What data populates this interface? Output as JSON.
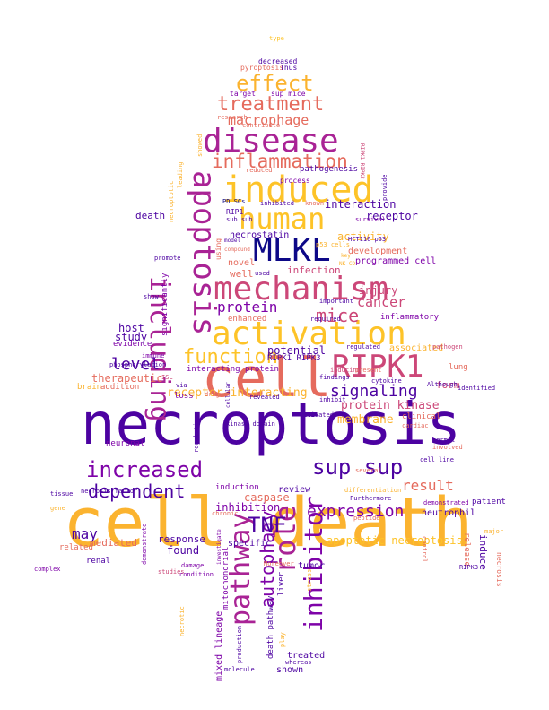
{
  "colors": {
    "navy": "#0d0887",
    "indigo": "#4c02a1",
    "purple": "#7e03a8",
    "magenta": "#a92395",
    "pink": "#cc4778",
    "salmon": "#e56b5d",
    "orange": "#f89441",
    "amber": "#fdc328",
    "gold": "#f0f921"
  },
  "words": {
    "cell_death": "cell death",
    "necroptosis": "necroptosis",
    "cell": "cell",
    "mlkl": "MLKL",
    "apoptosis": "apoptosis",
    "mechanism": "mechanism",
    "induced": "induced",
    "disease": "disease",
    "activation": "activation",
    "human": "human",
    "ripk1": "RIPK1",
    "including": "including",
    "pathway": "pathway",
    "role": "role",
    "inhibitor": "inhibitor",
    "sup_sup": "sup sup",
    "increased": "increased",
    "inflammation": "inflammation",
    "treatment": "treatment",
    "effect": "effect",
    "function": "function",
    "signaling": "signaling",
    "tnf": "TNF",
    "expression": "expression",
    "result": "result",
    "dependent": "dependent",
    "mice": "mice",
    "protein": "protein",
    "level": "level",
    "autophagy": "autophagy",
    "macrophage": "macrophage",
    "may": "may",
    "cancer": "cancer",
    "receptor_interacting": "receptor interacting",
    "apoptotic_necroptosis": "apoptotic necroptosis",
    "protein_kinase": "protein kinase",
    "inhibition": "inhibition",
    "membrane": "membrane",
    "mixed_lineage": "mixed lineage",
    "mitochondrial": "mitochondrial",
    "potential": "potential",
    "ripk1_ripk3": "RIPK1 RIPK3",
    "injury": "injury",
    "infection": "infection",
    "interaction": "interaction",
    "receptor": "receptor",
    "activity": "activity",
    "development": "development",
    "programmed_cell": "programmed cell",
    "therapeutic": "therapeutic",
    "study": "study",
    "host": "host",
    "death": "death",
    "necrostatin": "necrostatin",
    "novel": "novel",
    "well": "well",
    "enhanced": "enhanced",
    "using": "using",
    "significantly": "significantly",
    "found": "found",
    "specific": "specific",
    "response": "response",
    "mediated": "mediated",
    "caspase": "caspase",
    "review": "review",
    "tumor": "tumor",
    "liver": "liver",
    "treated": "treated",
    "shown": "shown",
    "death_pathway": "death pathway",
    "neutrophil": "neutrophil",
    "release": "release",
    "induce": "induce",
    "form": "form",
    "lung": "lung",
    "inflammatory": "inflammatory",
    "associated": "associated",
    "evidence": "evidence",
    "addition": "addition",
    "interacting_protein": "interacting protein",
    "loss": "loss",
    "brain": "brain",
    "neuronal": "neuronal",
    "induction": "induction",
    "related": "related",
    "renal": "renal",
    "decreased": "decreased",
    "pyroptosis": "pyroptosis",
    "thus": "Thus",
    "target": "target",
    "sup_mice": "sup mice",
    "research": "research",
    "contribute": "contribute",
    "reduced": "reduced",
    "pathogenesis": "pathogenesis",
    "process": "process",
    "ripk1_ripk3_small": "RIPK1 RIPK3",
    "leading": "leading",
    "necroptotic": "necroptotic",
    "showed": "showed",
    "pdlscs": "PDLSCs",
    "inhibited": "inhibited",
    "known": "known",
    "survival": "survival",
    "provide": "provide",
    "ripk1_small": "RIP1",
    "sub_sub": "sub sub",
    "hct116_p53": "HCT116 p53",
    "model": "model",
    "compound": "compound",
    "p53_cells": "p53 cells",
    "key": "key",
    "nk_cd": "NK CD",
    "promote": "promote",
    "used": "used",
    "important": "important",
    "required": "required",
    "regulated": "regulated",
    "pathogen": "pathogen",
    "involved": "involved",
    "cell_line": "cell line",
    "demonstrated": "demonstrated",
    "patient": "patient",
    "control": "control",
    "complex": "complex",
    "necrosis_factor": "necrosis factor",
    "tissue": "tissue",
    "gene": "gene",
    "studies": "studies",
    "demonstrate": "demonstrate",
    "damage": "damage",
    "condition": "condition",
    "chronic": "chronic",
    "investigate": "investigate",
    "moreover": "Moreover",
    "furthermore": "Furthermore",
    "differentiation": "differentiation",
    "peptide": "peptide",
    "several": "several",
    "cytokine": "cytokine",
    "although": "Although",
    "identified": "identified",
    "clinical": "clinical",
    "cardiac": "cardiac",
    "present": "present",
    "inducing": "inducing",
    "findings": "findings",
    "inhibit": "inhibit",
    "revealed": "revealed",
    "activated": "activated",
    "kinase_domain": "kinase domain",
    "regulation": "regulation",
    "drug": "drug",
    "immune": "immune",
    "phosphorylation": "phosphorylation",
    "via": "via",
    "isl": "ISL",
    "cellular": "cellular",
    "necrotic": "necrotic",
    "normal": "normal",
    "molecule": "molecule",
    "whereas": "whereas",
    "production": "production",
    "stress": "stress",
    "play": "play",
    "major": "major",
    "ripk3": "RIPK3",
    "necrosis": "necrosis",
    "show": "show",
    "type": "type"
  }
}
